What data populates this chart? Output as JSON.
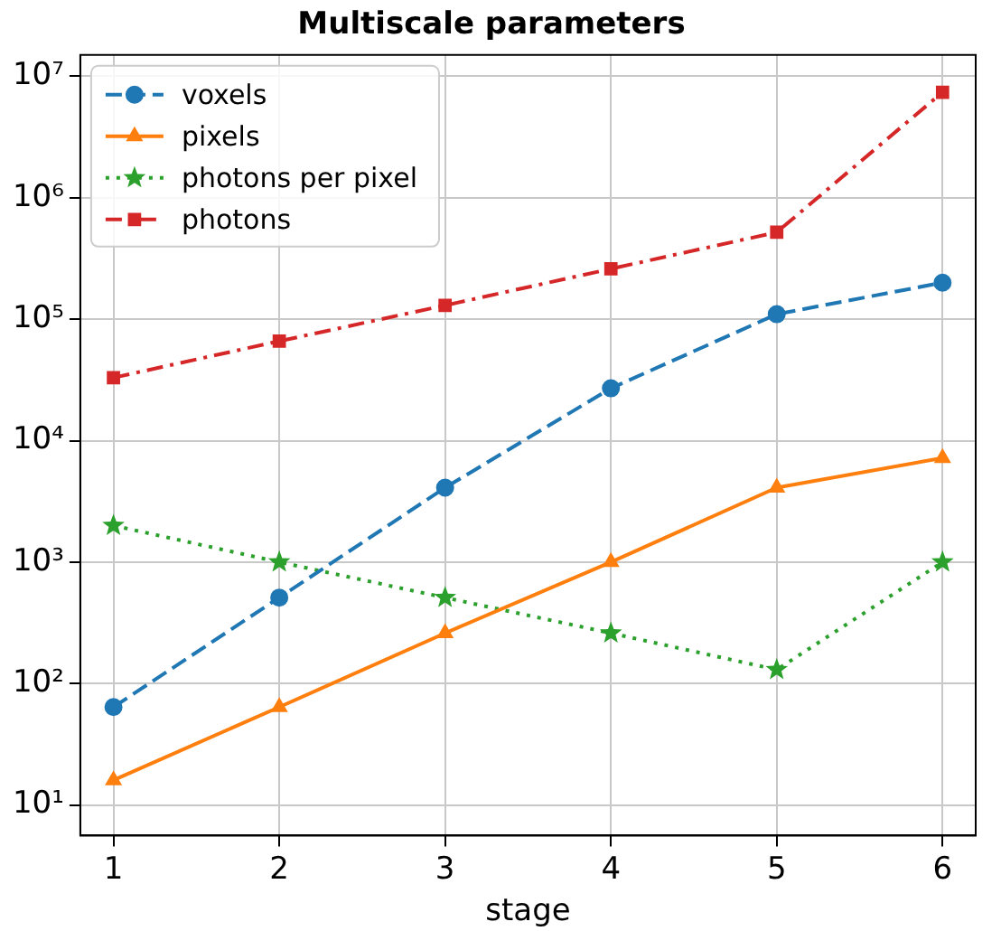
{
  "chart_data": {
    "type": "line",
    "title": "Multiscale parameters",
    "xlabel": "stage",
    "x": [
      1,
      2,
      3,
      4,
      5,
      6
    ],
    "series": [
      {
        "name": "voxels",
        "color": "#1f77b4",
        "marker": "circle",
        "line_style": "dashed",
        "values": [
          64,
          510,
          4100,
          27000,
          110000,
          200000
        ]
      },
      {
        "name": "pixels",
        "color": "#ff7f0e",
        "marker": "triangle",
        "line_style": "solid",
        "values": [
          16,
          64,
          260,
          1000,
          4100,
          7200
        ]
      },
      {
        "name": "photons per pixel",
        "color": "#2ca02c",
        "marker": "star",
        "line_style": "dotted",
        "values": [
          2000,
          1000,
          510,
          260,
          130,
          1000
        ]
      },
      {
        "name": "photons",
        "color": "#d62728",
        "marker": "square",
        "line_style": "dashdot",
        "values": [
          33000,
          66000,
          130000,
          260000,
          520000,
          7400000
        ]
      }
    ],
    "log": "y",
    "grid": true,
    "legend": "top left",
    "xlim": [
      0.8,
      6.2
    ],
    "xticks": [
      1,
      2,
      3,
      4,
      5,
      6
    ],
    "ylim": [
      5.6,
      15000000
    ],
    "yticks": [
      {
        "value": 10,
        "label": "10¹"
      },
      {
        "value": 100,
        "label": "10²"
      },
      {
        "value": 1000,
        "label": "10³"
      },
      {
        "value": 10000,
        "label": "10⁴"
      },
      {
        "value": 100000,
        "label": "10⁵"
      },
      {
        "value": 1000000,
        "label": "10⁶"
      },
      {
        "value": 10000000,
        "label": "10⁷"
      }
    ]
  }
}
